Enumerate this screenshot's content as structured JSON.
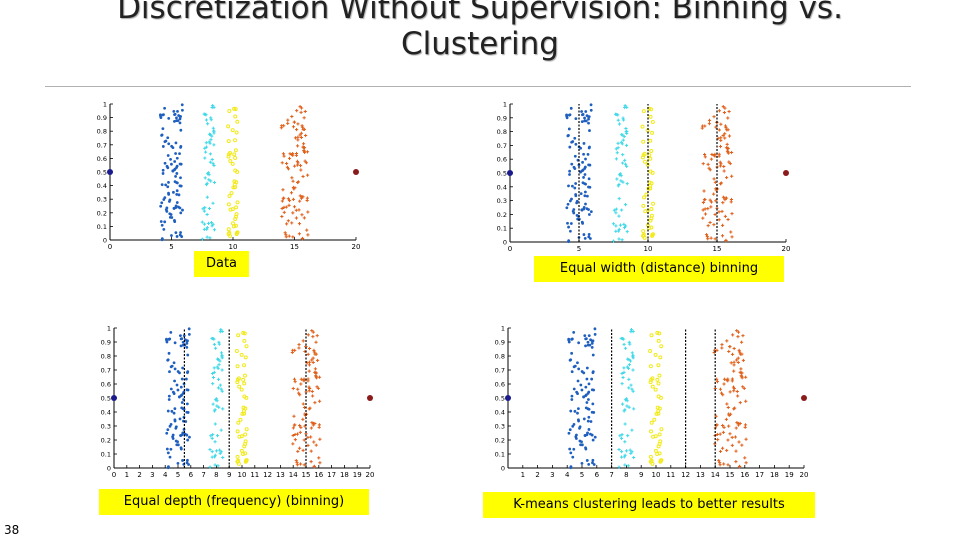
{
  "slide": {
    "title_line1": "Discretization Without Supervision: Binning vs.",
    "title_line2": "Clustering",
    "page_number": "38"
  },
  "captions": {
    "data": "Data",
    "equal_width": "Equal width (distance) binning",
    "equal_depth": "Equal depth (frequency) (binning)",
    "kmeans": "K-means clustering leads to better results"
  },
  "colors": {
    "cluster1": "#1f5fbf",
    "cluster2": "#3fd8e8",
    "cluster3": "#f2ea1a",
    "cluster4": "#e0601a",
    "left_outlier": "#1a1a8c",
    "right_outlier": "#8b1a1a",
    "caption_bg": "#ffff00"
  },
  "chart_data": [
    {
      "type": "scatter",
      "name_ref": "Data",
      "xlim": [
        0,
        20
      ],
      "ylim": [
        0,
        1
      ],
      "xticks": [
        "0",
        "5",
        "10",
        "15",
        "20"
      ],
      "yticks": [
        "0",
        "0.1",
        "0.2",
        "0.3",
        "0.4",
        "0.5",
        "0.6",
        "0.7",
        "0.8",
        "0.9",
        "1"
      ],
      "dividers": []
    },
    {
      "type": "scatter",
      "name_ref": "Equal width (distance) binning",
      "xlim": [
        0,
        20
      ],
      "ylim": [
        0,
        1
      ],
      "xticks": [
        "0",
        "5",
        "10",
        "15",
        "20"
      ],
      "yticks": [
        "0",
        "0.1",
        "0.2",
        "0.3",
        "0.4",
        "0.5",
        "0.6",
        "0.7",
        "0.8",
        "0.9",
        "1"
      ],
      "dividers": [
        5,
        10,
        15
      ]
    },
    {
      "type": "scatter",
      "name_ref": "Equal depth (frequency) (binning)",
      "xlim": [
        0,
        20
      ],
      "ylim": [
        0,
        1
      ],
      "xticks": [
        "0",
        "1",
        "2",
        "3",
        "4",
        "5",
        "6",
        "7",
        "8",
        "9",
        "10",
        "11",
        "12",
        "13",
        "14",
        "15",
        "16",
        "17",
        "18",
        "19",
        "20"
      ],
      "yticks": [
        "0",
        "0.1",
        "0.2",
        "0.3",
        "0.4",
        "0.5",
        "0.6",
        "0.7",
        "0.8",
        "0.9",
        "1"
      ],
      "dividers": [
        5.5,
        9,
        15
      ]
    },
    {
      "type": "scatter",
      "name_ref": "K-means clustering leads to better results",
      "xlim": [
        0,
        20
      ],
      "ylim": [
        0,
        1
      ],
      "xticks": [
        "1",
        "2",
        "3",
        "4",
        "5",
        "6",
        "7",
        "8",
        "9",
        "10",
        "11",
        "12",
        "13",
        "14",
        "15",
        "16",
        "17",
        "18",
        "19",
        "20"
      ],
      "yticks": [
        "0",
        "0.1",
        "0.2",
        "0.3",
        "0.4",
        "0.5",
        "0.6",
        "0.7",
        "0.8",
        "0.9",
        "1"
      ],
      "dividers": [
        7,
        12,
        14
      ]
    }
  ],
  "series": [
    {
      "center_x": 5,
      "spread": 0.9,
      "color_key": "cluster1",
      "count": 110,
      "marker": "dot"
    },
    {
      "center_x": 8,
      "spread": 0.5,
      "color_key": "cluster2",
      "count": 60,
      "marker": "plus"
    },
    {
      "center_x": 10,
      "spread": 0.4,
      "color_key": "cluster3",
      "count": 45,
      "marker": "ring"
    },
    {
      "center_x": 15,
      "spread": 1.1,
      "color_key": "cluster4",
      "count": 110,
      "marker": "plus"
    }
  ],
  "outliers": [
    {
      "x": 0,
      "y": 0.5,
      "color_key": "left_outlier"
    },
    {
      "x": 20,
      "y": 0.5,
      "color_key": "right_outlier"
    }
  ]
}
